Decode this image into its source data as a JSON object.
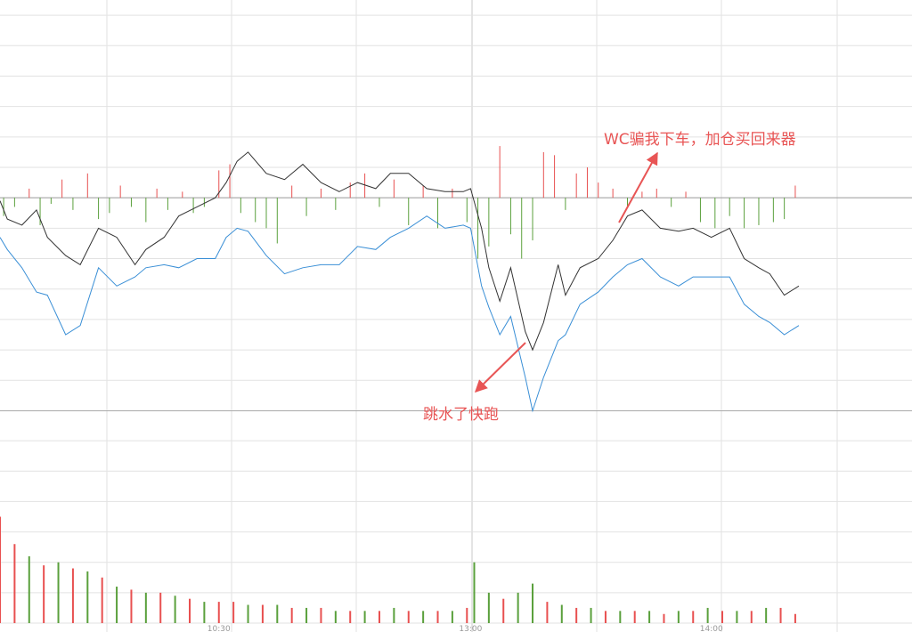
{
  "chart_data": [
    {
      "type": "line",
      "xlim": [
        0,
        250
      ],
      "ylim": [
        -7.25,
        6.5
      ],
      "yticks": [
        -7,
        -6,
        -5,
        -4,
        -3,
        -2,
        -1,
        0,
        1,
        2,
        3,
        4,
        5,
        6
      ],
      "grid": true,
      "x": [
        0,
        2,
        6,
        10,
        13,
        18,
        22,
        27,
        32,
        37,
        40,
        45,
        49,
        54,
        59,
        62,
        65,
        68,
        73,
        78,
        83,
        88,
        93,
        98,
        103,
        107,
        112,
        117,
        122,
        127,
        129,
        132,
        134,
        137,
        140,
        144,
        146,
        149,
        153,
        155,
        159,
        164,
        168,
        172,
        176,
        181,
        186,
        190,
        195,
        200,
        204,
        208,
        211,
        215,
        219
      ],
      "series": [
        {
          "color": "#333333",
          "values": [
            -0.1,
            -0.7,
            -0.9,
            -0.4,
            -1.3,
            -1.9,
            -2.2,
            -1.0,
            -1.3,
            -2.2,
            -1.7,
            -1.3,
            -0.6,
            -0.3,
            0.0,
            0.5,
            1.2,
            1.5,
            0.8,
            0.6,
            1.1,
            0.5,
            0.2,
            0.5,
            0.3,
            0.8,
            0.8,
            0.3,
            0.2,
            0.2,
            0.3,
            -1.0,
            -2.3,
            -3.4,
            -2.3,
            -4.4,
            -5.0,
            -4.1,
            -2.2,
            -3.2,
            -2.3,
            -2.0,
            -1.4,
            -0.6,
            -0.4,
            -1.0,
            -1.1,
            -1.0,
            -1.3,
            -1.0,
            -2.0,
            -2.3,
            -2.5,
            -3.2,
            -2.9
          ]
        },
        {
          "color": "#3a8fd6",
          "values": [
            -1.3,
            -1.7,
            -2.3,
            -3.1,
            -3.2,
            -4.5,
            -4.2,
            -2.3,
            -2.9,
            -2.6,
            -2.3,
            -2.2,
            -2.3,
            -2.0,
            -2.0,
            -1.3,
            -1.0,
            -1.1,
            -1.9,
            -2.5,
            -2.3,
            -2.2,
            -2.2,
            -1.6,
            -1.7,
            -1.3,
            -1.0,
            -0.6,
            -1.0,
            -0.9,
            -1.0,
            -2.9,
            -3.6,
            -4.5,
            -3.9,
            -5.9,
            -7.0,
            -5.9,
            -4.7,
            -4.5,
            -3.5,
            -3.1,
            -2.6,
            -2.2,
            -2.0,
            -2.6,
            -2.9,
            -2.6,
            -2.6,
            -2.6,
            -3.5,
            -3.9,
            -4.1,
            -4.5,
            -4.2
          ]
        }
      ],
      "bars": {
        "up_color": "#e85050",
        "down_color": "#5aa03c",
        "x": [
          1,
          4,
          8,
          11,
          14,
          17,
          20,
          24,
          27,
          30,
          33,
          36,
          40,
          43,
          46,
          50,
          53,
          56,
          60,
          63,
          66,
          70,
          73,
          76,
          80,
          84,
          88,
          92,
          96,
          100,
          104,
          108,
          112,
          116,
          120,
          124,
          128,
          131,
          134,
          137,
          140,
          143,
          146,
          149,
          152,
          155,
          158,
          161,
          164,
          168,
          172,
          176,
          180,
          184,
          188,
          192,
          196,
          200,
          204,
          208,
          212,
          215,
          218
        ],
        "values": [
          -0.6,
          -0.3,
          0.3,
          -0.9,
          -0.2,
          0.6,
          -0.4,
          0.8,
          -0.7,
          -0.5,
          0.4,
          -0.3,
          -0.8,
          0.3,
          -0.4,
          0.2,
          -0.5,
          -0.3,
          0.9,
          1.1,
          -0.5,
          -0.8,
          -1.0,
          -1.5,
          0.4,
          -0.6,
          0.3,
          -0.4,
          0.5,
          0.8,
          -0.3,
          0.6,
          -0.9,
          0.4,
          -1.0,
          0.3,
          -0.8,
          -2.0,
          -1.6,
          1.7,
          -1.2,
          -2.0,
          -1.4,
          1.5,
          1.4,
          -0.4,
          0.8,
          1.0,
          0.5,
          0.3,
          -0.3,
          0.2,
          0.3,
          -0.3,
          0.2,
          -0.8,
          -1.0,
          -0.6,
          -1.0,
          -0.9,
          -0.8,
          -0.7,
          0.4
        ]
      },
      "annotations": [
        {
          "text": "WC骗我下车，加仓买回来器"
        },
        {
          "text": "跳水了快跑"
        }
      ]
    },
    {
      "type": "bar",
      "xlim": [
        0,
        250
      ],
      "ylim": [
        0,
        7
      ],
      "yticks": [
        0,
        1,
        2,
        3,
        4,
        5,
        6,
        7
      ],
      "grid": true,
      "xticks": [
        {
          "value": 60,
          "label": "10:30"
        },
        {
          "value": 129,
          "label": "13:00"
        },
        {
          "value": 195,
          "label": "14:00"
        }
      ],
      "x": [
        0,
        4,
        8,
        12,
        16,
        20,
        24,
        28,
        32,
        36,
        40,
        44,
        48,
        52,
        56,
        60,
        64,
        68,
        72,
        76,
        80,
        84,
        88,
        92,
        96,
        100,
        104,
        108,
        112,
        116,
        120,
        124,
        128,
        130,
        134,
        138,
        142,
        146,
        150,
        154,
        158,
        162,
        166,
        170,
        174,
        178,
        182,
        186,
        190,
        194,
        198,
        202,
        206,
        210,
        214,
        218
      ],
      "values": [
        3.5,
        2.6,
        2.2,
        1.9,
        2.0,
        1.8,
        1.7,
        1.5,
        1.2,
        1.1,
        1.0,
        1.0,
        0.9,
        0.8,
        0.7,
        0.7,
        0.7,
        0.6,
        0.6,
        0.6,
        0.5,
        0.5,
        0.5,
        0.4,
        0.4,
        0.4,
        0.4,
        0.5,
        0.4,
        0.4,
        0.4,
        0.4,
        0.5,
        2.0,
        1.0,
        0.8,
        1.0,
        1.3,
        0.7,
        0.6,
        0.5,
        0.5,
        0.4,
        0.4,
        0.4,
        0.4,
        0.3,
        0.4,
        0.4,
        0.5,
        0.4,
        0.4,
        0.4,
        0.5,
        0.5,
        0.3
      ],
      "colors": [
        "#e85050",
        "#e85050",
        "#5aa03c",
        "#e85050",
        "#5aa03c",
        "#e85050",
        "#5aa03c",
        "#e85050",
        "#5aa03c",
        "#e85050",
        "#5aa03c",
        "#e85050",
        "#5aa03c",
        "#e85050",
        "#5aa03c",
        "#e85050",
        "#e85050",
        "#5aa03c",
        "#e85050",
        "#5aa03c",
        "#e85050",
        "#5aa03c",
        "#e85050",
        "#5aa03c",
        "#e85050",
        "#5aa03c",
        "#e85050",
        "#5aa03c",
        "#e85050",
        "#5aa03c",
        "#e85050",
        "#5aa03c",
        "#e85050",
        "#5aa03c",
        "#5aa03c",
        "#e85050",
        "#5aa03c",
        "#5aa03c",
        "#e85050",
        "#5aa03c",
        "#e85050",
        "#5aa03c",
        "#e85050",
        "#5aa03c",
        "#e85050",
        "#5aa03c",
        "#e85050",
        "#5aa03c",
        "#e85050",
        "#5aa03c",
        "#e85050",
        "#5aa03c",
        "#e85050",
        "#5aa03c",
        "#e85050",
        "#e85050"
      ]
    }
  ]
}
